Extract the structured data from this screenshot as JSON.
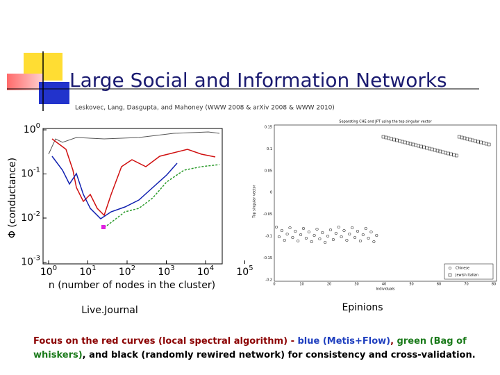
{
  "slide": {
    "title": "Large Social and Information Networks",
    "citation": "Leskovec, Lang, Dasgupta, and Mahoney (WWW 2008 & arXiv 2008 & WWW 2010)",
    "left_figure": {
      "y_label": "Φ (conductance)",
      "x_label": "n (number of nodes in the cluster)",
      "yticks": [
        {
          "base": "10",
          "exp": "0"
        },
        {
          "base": "10",
          "exp": "-1"
        },
        {
          "base": "10",
          "exp": "-2"
        },
        {
          "base": "10",
          "exp": "-3"
        }
      ],
      "xticks": [
        {
          "base": "10",
          "exp": "0"
        },
        {
          "base": "10",
          "exp": "1"
        },
        {
          "base": "10",
          "exp": "2"
        },
        {
          "base": "10",
          "exp": "3"
        },
        {
          "base": "10",
          "exp": "4"
        },
        {
          "base": "10",
          "exp": "5"
        }
      ],
      "caption": "Live.Journal"
    },
    "right_figure": {
      "title": "Separating CHE and JPT using the top singular vector",
      "y_label": "Top singular vector",
      "x_label": "Individuals",
      "yticks": [
        "0.15",
        "0.1",
        "0.05",
        "0",
        "-0.05",
        "-0.1",
        "-0.15",
        "-0.2"
      ],
      "xticks": [
        "0",
        "10",
        "20",
        "30",
        "40",
        "50",
        "60",
        "70",
        "80"
      ],
      "legend": [
        "Chinese",
        "Jewish Italian"
      ],
      "caption": "Epinions"
    },
    "footer": [
      {
        "text": "Focus on the red curves (local spectral algorithm) - ",
        "color": "#8b0000"
      },
      {
        "text": "blue (Metis+Flow)",
        "color": "#1f3fbf"
      },
      {
        "text": ", ",
        "color": "#8b0000"
      },
      {
        "text": "green (Bag of whiskers)",
        "color": "#1a7a1a"
      },
      {
        "text": ", and black (randomly rewired network) for consistency and cross-validation.",
        "color": "#000000"
      }
    ]
  }
}
